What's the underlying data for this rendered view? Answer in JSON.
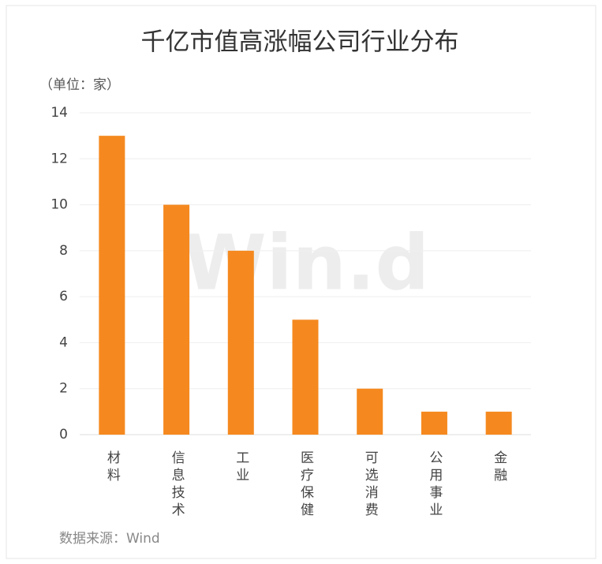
{
  "chart_data": {
    "type": "bar",
    "title": "千亿市值高涨幅公司行业分布",
    "unit_label": "（单位：家）",
    "categories": [
      "材料",
      "信息技术",
      "工业",
      "医疗保健",
      "可选消费",
      "公用事业",
      "金融"
    ],
    "values": [
      13,
      10,
      8,
      5,
      2,
      1,
      1
    ],
    "color": "#f5891f",
    "ylim": [
      0,
      14
    ],
    "yticks": [
      0,
      2,
      4,
      6,
      8,
      10,
      12,
      14
    ],
    "grid": true,
    "source": "数据来源：Wind",
    "watermark": "Win.d"
  }
}
